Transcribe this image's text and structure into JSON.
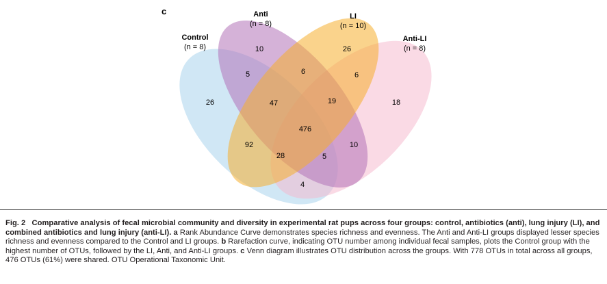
{
  "panel_letter": "c",
  "sets": [
    {
      "key": "control",
      "name": "Control",
      "n": "(n = 8)",
      "color": "#a9d3ec"
    },
    {
      "key": "anti",
      "name": "Anti",
      "n": "(n = 8)",
      "color": "#b272b8"
    },
    {
      "key": "li",
      "name": "LI",
      "n": "(n = 10)",
      "color": "#f6ae2d"
    },
    {
      "key": "antili",
      "name": "Anti-LI",
      "n": "(n = 8)",
      "color": "#f6b6cc"
    }
  ],
  "regions": {
    "anti_only": "10",
    "li_only": "26",
    "control_only": "26",
    "antili_only": "18",
    "control_anti": "5",
    "anti_li": "6",
    "li_antili": "6",
    "control_anti_li": "47",
    "anti_li_antili": "19",
    "all_four": "476",
    "control_li": "92",
    "anti_antili": "10",
    "control_li_antili": "28",
    "control_anti_antili": "5",
    "control_antili": "4"
  },
  "caption": {
    "fig_label": "Fig. 2",
    "title": "Comparative analysis of fecal microbial community and diversity in experimental rat pups across four groups: control, antibiotics (anti), lung injury (LI), and combined antibiotics and lung injury (anti-LI).",
    "a_label": "a",
    "a_text": "Rank Abundance Curve demonstrates species richness and evenness. The Anti and Anti-LI groups displayed lesser species richness and evenness compared to the Control and LI groups.",
    "b_label": "b",
    "b_text": "Rarefaction curve, indicating OTU number among individual fecal samples, plots the Control group with the highest number of OTUs, followed by the LI, Anti, and Anti-LI groups.",
    "c_label": "c",
    "c_text": "Venn diagram illustrates OTU distribution across the groups. With 778 OTUs in total across all groups, 476 OTUs (61%) were shared. OTU Operational Taxonomic Unit."
  }
}
